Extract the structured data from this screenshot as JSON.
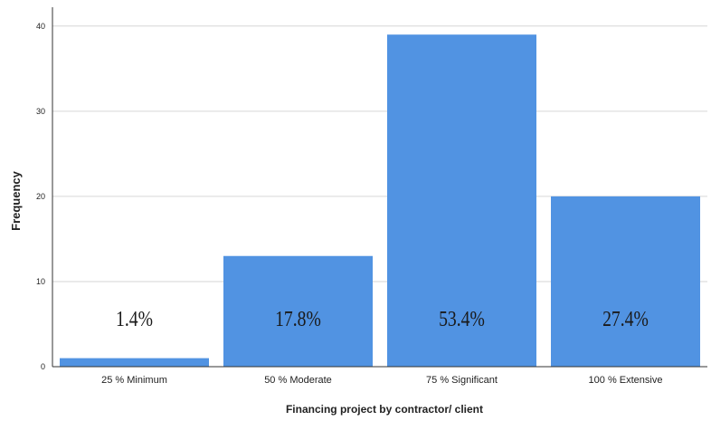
{
  "chart_data": {
    "type": "bar",
    "xlabel": "Financing project by contractor/ client",
    "ylabel": "Frequency",
    "categories": [
      "25 % Minimum",
      "50 % Moderate",
      "75 % Significant",
      "100 % Extensive"
    ],
    "values": [
      1,
      13,
      39,
      20
    ],
    "data_labels": [
      "1.4%",
      "17.8%",
      "53.4%",
      "27.4%"
    ],
    "ylim": [
      0,
      42
    ],
    "yticks": [
      0,
      10,
      20,
      30,
      40
    ],
    "grid": true,
    "bar_color": "#5193e2",
    "legend": "none"
  }
}
